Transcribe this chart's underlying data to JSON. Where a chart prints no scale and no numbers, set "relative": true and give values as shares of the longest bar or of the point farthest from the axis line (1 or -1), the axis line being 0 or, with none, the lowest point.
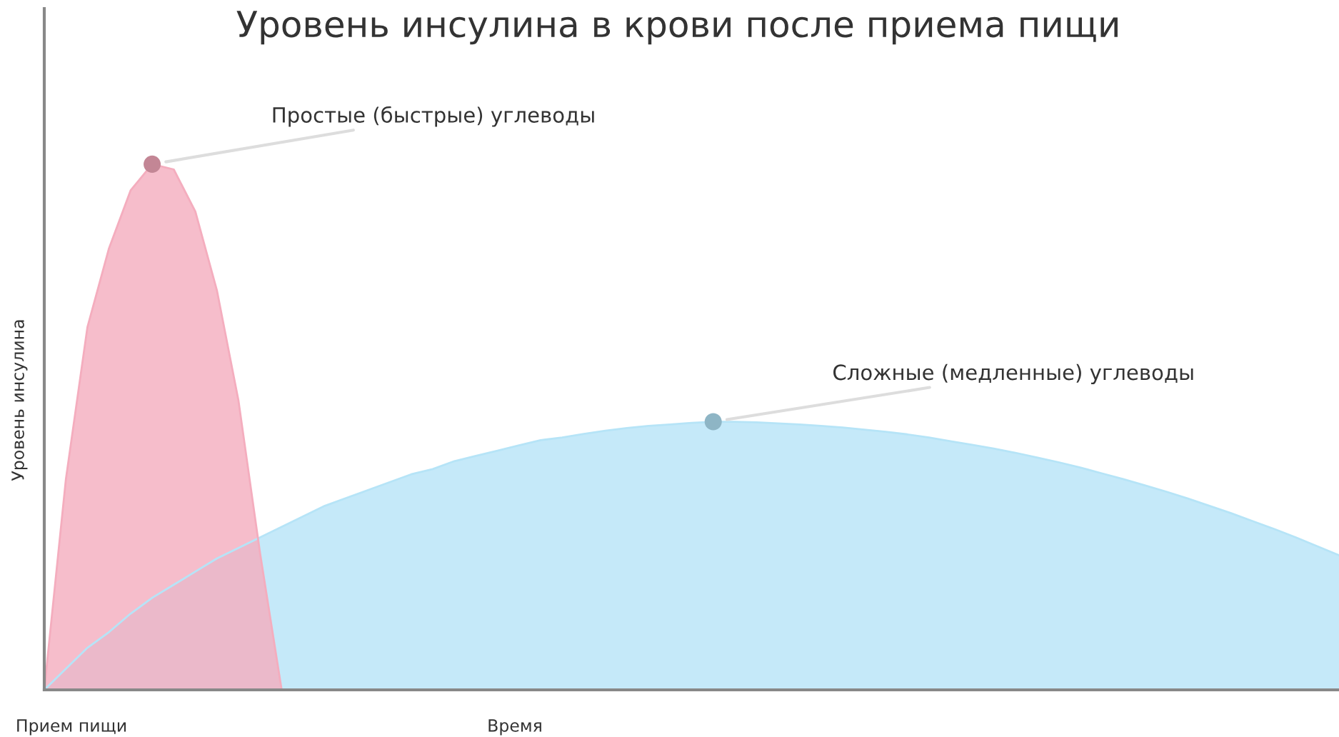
{
  "chart_data": {
    "type": "area",
    "title": "Уровень инсулина в крови после приема пищи",
    "xlabel": "Время",
    "ylabel": "Уровень инсулина",
    "relative": true,
    "tick_labels": false,
    "annotations": [
      "Прием пищи"
    ],
    "categories": [
      null,
      null,
      null,
      null,
      null,
      null,
      null,
      null,
      null,
      null,
      null,
      null,
      null,
      null,
      null,
      null,
      null,
      null,
      null,
      null,
      null,
      null,
      null,
      null,
      null,
      null,
      null,
      null,
      null,
      null,
      null,
      null,
      null,
      null,
      null,
      null,
      null,
      null,
      null,
      null,
      null,
      null,
      null,
      null,
      null,
      null,
      null,
      null,
      null,
      null,
      null,
      null,
      null,
      null,
      null,
      null,
      null,
      null,
      null,
      null,
      null
    ],
    "series": [
      {
        "name": "Сложные (медленные) углеводы",
        "color": "#b6e4f7",
        "values": [
          0,
          0.04,
          0.08,
          0.11,
          0.145,
          0.175,
          0.2,
          0.225,
          0.25,
          0.27,
          0.29,
          0.31,
          0.33,
          0.35,
          0.365,
          0.38,
          0.395,
          0.41,
          0.42,
          0.435,
          0.445,
          0.455,
          0.465,
          0.475,
          0.48,
          0.487,
          0.493,
          0.498,
          0.502,
          0.505,
          0.508,
          0.51,
          0.51,
          0.509,
          0.507,
          0.505,
          0.502,
          0.499,
          0.495,
          0.491,
          0.486,
          0.48,
          0.473,
          0.466,
          0.459,
          0.451,
          0.442,
          0.433,
          0.423,
          0.412,
          0.401,
          0.389,
          0.377,
          0.364,
          0.35,
          0.336,
          0.321,
          0.306,
          0.29,
          0.273,
          0.256
        ]
      },
      {
        "name": "Простые (быстрые) углеводы",
        "color": "#f4adbe",
        "values": [
          0,
          0.4,
          0.69,
          0.84,
          0.95,
          1,
          0.99,
          0.91,
          0.76,
          0.55,
          0.26,
          0,
          null,
          null,
          null,
          null,
          null,
          null,
          null,
          null,
          null,
          null,
          null,
          null,
          null,
          null,
          null,
          null,
          null,
          null,
          null,
          null,
          null,
          null,
          null,
          null,
          null,
          null,
          null,
          null,
          null,
          null,
          null,
          null,
          null,
          null,
          null,
          null,
          null,
          null,
          null,
          null,
          null,
          null,
          null,
          null,
          null,
          null,
          null,
          null,
          null
        ]
      }
    ]
  }
}
